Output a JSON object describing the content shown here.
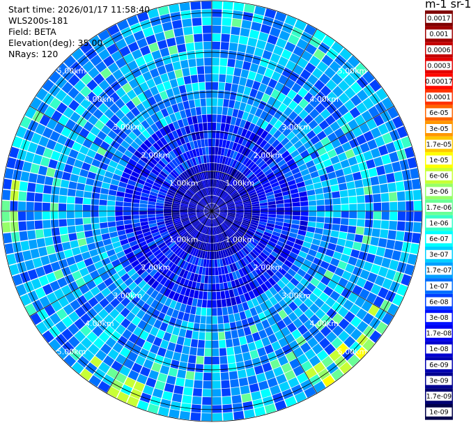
{
  "header": {
    "start_time": "Start time: 2026/01/17 11:58:40",
    "instrument": "WLS200s-181",
    "field": "Field: BETA",
    "elevation": "Elevation(deg): 35.00",
    "nrays": "NRays: 120"
  },
  "colorbar": {
    "title": "m-1 sr-1",
    "labels": [
      "0.0017",
      "0.001",
      "0.0006",
      "0.0003",
      "0.00017",
      "0.0001",
      "6e-05",
      "3e-05",
      "1.7e-05",
      "1e-05",
      "6e-06",
      "3e-06",
      "1.7e-06",
      "1e-06",
      "6e-07",
      "3e-07",
      "1.7e-07",
      "1e-07",
      "6e-08",
      "3e-08",
      "1.7e-08",
      "1e-08",
      "6e-09",
      "3e-09",
      "1.7e-09",
      "1e-09"
    ],
    "colors": [
      "#7f0000",
      "#9f0000",
      "#c40000",
      "#e40000",
      "#ff0a00",
      "#ff3200",
      "#ff6400",
      "#ff9600",
      "#ffc800",
      "#ffff00",
      "#c8ff36",
      "#96ff69",
      "#69ff96",
      "#36ffc8",
      "#00ffff",
      "#00d0ff",
      "#00a0ff",
      "#0070ff",
      "#0040ff",
      "#0010ff",
      "#0000f0",
      "#0000d0",
      "#0000b0",
      "#000090",
      "#000070",
      "#00004a"
    ]
  },
  "chart_data": {
    "type": "heatmap",
    "projection": "polar (PPI scan)",
    "field": "BETA",
    "units": "m-1 sr-1",
    "nrays": 120,
    "elevation_deg": 35.0,
    "range_rings_km": [
      1,
      2,
      3,
      4,
      5
    ],
    "ring_labels": [
      "1.00km",
      "2.00km",
      "3.00km",
      "4.00km",
      "5.00km"
    ],
    "max_range_km": 5.3,
    "scale": "log",
    "value_range": [
      1e-09,
      0.0017
    ],
    "grid": true,
    "colorbar_position": "right"
  }
}
